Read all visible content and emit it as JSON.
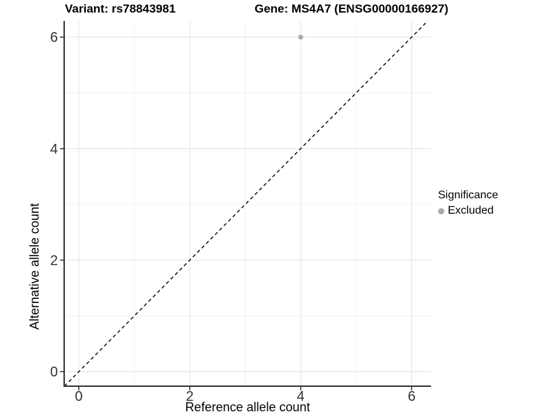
{
  "titles": {
    "left": "Variant: rs78843981",
    "right": "Gene: MS4A7 (ENSG00000166927)"
  },
  "axes": {
    "x_label": "Reference allele count",
    "y_label": "Alternative allele count"
  },
  "legend": {
    "title": "Significance",
    "items": [
      {
        "label": "Excluded",
        "color": "#ababab"
      }
    ]
  },
  "chart_data": {
    "type": "scatter",
    "title": "Variant: rs78843981 / Gene: MS4A7 (ENSG00000166927)",
    "xlabel": "Reference allele count",
    "ylabel": "Alternative allele count",
    "xlim": [
      -0.264,
      6.35
    ],
    "ylim": [
      -0.26,
      6.29
    ],
    "x_ticks": [
      0,
      2,
      4,
      6
    ],
    "y_ticks": [
      0,
      2,
      4,
      6
    ],
    "x_minor_ticks": [
      1,
      3,
      5
    ],
    "y_minor_ticks": [
      1,
      3,
      5
    ],
    "grid": true,
    "legend_position": "right",
    "series": [
      {
        "name": "Excluded",
        "color": "#ababab",
        "points": [
          {
            "x": 4,
            "y": 6
          }
        ]
      }
    ],
    "reference_line": {
      "type": "identity",
      "slope": 1,
      "intercept": 0,
      "style": "dashed",
      "color": "#000000"
    }
  },
  "style": {
    "major_grid_color": "#e7e7e7",
    "minor_grid_color": "#f1f1f1",
    "axis_line_color": "#333333",
    "tick_label_color": "#333333",
    "point_color": "#ababab"
  }
}
